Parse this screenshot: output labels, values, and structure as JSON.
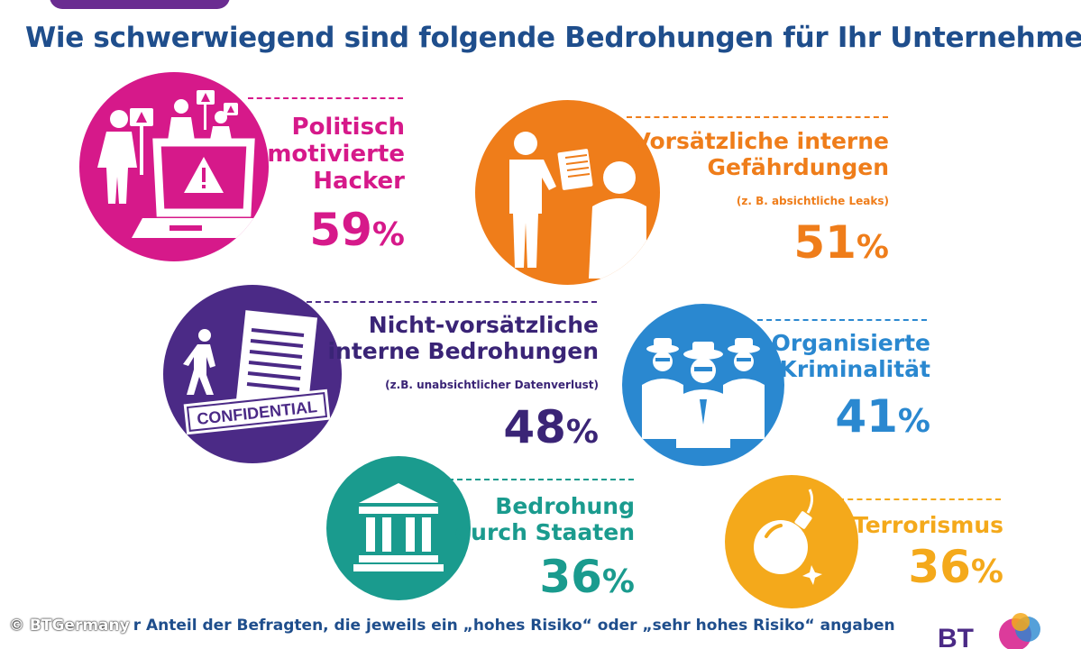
{
  "title": "Wie schwerwiegend sind folgende Bedrohungen für Ihr Unternehmen?",
  "footer": {
    "copyright": "© BTGermany",
    "note": "r Anteil der Befragten, die jeweils ein „hohes Risiko“ oder „sehr hohes Risiko“ angaben"
  },
  "logo_text": "BT",
  "colors": {
    "title": "#1f4e8c",
    "political": "#d6198a",
    "internal_intentional": "#ef7d1a",
    "internal_unintentional": "#4b2a86",
    "organised_crime": "#2a88d0",
    "state": "#1a9b8e",
    "terrorism": "#f4a91b"
  },
  "chart_data": {
    "type": "table",
    "title": "Wie schwerwiegend sind folgende Bedrohungen für Ihr Unternehmen?",
    "items": [
      {
        "key": "political",
        "label_lines": [
          "Politisch",
          "motivierte",
          "Hacker"
        ],
        "note": "",
        "value": 59,
        "display": "59",
        "unit": "%",
        "icon": "protesters-laptop-icon"
      },
      {
        "key": "internal_intentional",
        "label_lines": [
          "Vorsätzliche interne",
          "Gefährdungen"
        ],
        "note": "(z. B. absichtliche Leaks)",
        "value": 51,
        "display": "51",
        "unit": "%",
        "icon": "document-handover-icon"
      },
      {
        "key": "internal_unintentional",
        "label_lines": [
          "Nicht-vorsätzliche",
          "interne Bedrohungen"
        ],
        "note": "(z.B. unabsichtlicher Datenverlust)",
        "value": 48,
        "display": "48",
        "unit": "%",
        "icon": "confidential-document-icon",
        "icon_text": "CONFIDENTIAL"
      },
      {
        "key": "organised_crime",
        "label_lines": [
          "Organisierte",
          "Kriminalität"
        ],
        "note": "",
        "value": 41,
        "display": "41",
        "unit": "%",
        "icon": "gangsters-icon"
      },
      {
        "key": "state",
        "label_lines": [
          "Bedrohung",
          "durch Staaten"
        ],
        "note": "",
        "value": 36,
        "display": "36",
        "unit": "%",
        "icon": "government-building-icon"
      },
      {
        "key": "terrorism",
        "label_lines": [
          "Terrorismus"
        ],
        "note": "",
        "value": 36,
        "display": "36",
        "unit": "%",
        "icon": "bomb-icon"
      }
    ]
  }
}
